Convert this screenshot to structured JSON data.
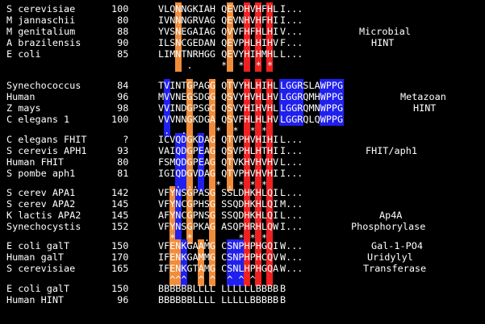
{
  "groups": [
    {
      "rows": [
        {
          "name": "S cerevisiae",
          "pos": "100",
          "seq": "VLQNNGKIAH QEVDHVHFHL",
          "tail": "I..."
        },
        {
          "name": "M jannaschii",
          "pos": "80",
          "seq": "IVNNNGRVAG QEVNHVHFHI",
          "tail": "I..."
        },
        {
          "name": "M genitalium",
          "pos": "88",
          "seq": "YVSNEGAIAG QVVFHFHLHI",
          "tail": "V..."
        },
        {
          "name": "A brazilensis",
          "pos": "90",
          "seq": "ILSNCGEDAN QEVPHLHIHV",
          "tail": "F..."
        },
        {
          "name": "E coli",
          "pos": "85",
          "seq": "LIMNTNRHGG QEVYHIHMHL",
          "tail": "L..."
        }
      ],
      "symbols": "     .     *  *  * *",
      "label": [
        "Microbial",
        "HINT"
      ]
    },
    {
      "rows": [
        {
          "name": "Synechococcus",
          "pos": "84",
          "seq": "TVINTGPAGG QTVYHLHIHL",
          "tail": "LGGRSLAWPPG"
        },
        {
          "name": "Human",
          "pos": "96",
          "seq": "MVVNEGSDGG QSVYHVHLHV",
          "tail": "LGGRQMHWPPG"
        },
        {
          "name": "Z mays",
          "pos": "98",
          "seq": "VVINDGPSGC QSVYHIHVHL",
          "tail": "LGGRQMNWPPG"
        },
        {
          "name": "C elegans 1",
          "pos": "100",
          "seq": "VVVNNGKDGA QSVFHLHLHV",
          "tail": "LGGRQLQWPPG"
        }
      ],
      "symbols": " .  .     *  *  * *",
      "label": [
        "Metazoan",
        "HINT"
      ]
    },
    {
      "rows": [
        {
          "name": "C elegans FHIT",
          "pos": "?",
          "seq": "ICVQDGKDAG QTVPHVHIHI",
          "tail": "L..."
        },
        {
          "name": "S cerevis APH1",
          "pos": "93",
          "seq": "VAIQDGPEAG QSVPHLHTHI",
          "tail": "I..."
        },
        {
          "name": "Human FHIT",
          "pos": "80",
          "seq": "FSMQDGPEAG QTVKHVHVHV",
          "tail": "L..."
        },
        {
          "name": "S pombe aph1",
          "pos": "81",
          "seq": "IGIQDGVDAG QTVPHVHVHI",
          "tail": "I..."
        }
      ],
      "symbols": "   . ..   * . * * *",
      "label": [
        "FHIT/aph1"
      ]
    },
    {
      "rows": [
        {
          "name": "S cerev APA1",
          "pos": "142",
          "seq": "VFYNSGPASG SSLDHKHLQI",
          "tail": "L..."
        },
        {
          "name": "S cerev APA2",
          "pos": "145",
          "seq": "VFYNCGPHSG SSQDHKHLQI",
          "tail": "M..."
        },
        {
          "name": "K lactis APA2",
          "pos": "145",
          "seq": "AFYNCGPNSG SSQDHKHLQI",
          "tail": "L..."
        },
        {
          "name": "Synechocystis",
          "pos": "152",
          "seq": "VFYNSGPKAG ASQPHRHLQW",
          "tail": "I..."
        }
      ],
      "symbols": "  *  *  .     * * *",
      "label": [
        "Ap4A",
        "Phosphorylase"
      ]
    },
    {
      "rows": [
        {
          "name": "E coli galT",
          "pos": "150",
          "seq": "VFENKGAAMG CSNPHPHGQI",
          "tail": "W..."
        },
        {
          "name": "Human galT",
          "pos": "170",
          "seq": "IFENKGAMMG CSNPHPHCQV",
          "tail": "W..."
        },
        {
          "name": "S cerevisiae",
          "pos": "165",
          "seq": "IFENKGTAMG CSNLHPHGQA",
          "tail": "W..."
        }
      ],
      "symbols": "  ^^^  ^ ^  ^ ^ ^",
      "label": [
        "Gal-1-PO4",
        "Uridylyl",
        "Transferase"
      ]
    },
    {
      "rows": [
        {
          "name": "E coli galT",
          "pos": "150",
          "seq": "BBBBBBLLLL LLLLLLBBBB",
          "tail": "B"
        },
        {
          "name": "Human HINT",
          "pos": "96",
          "seq": "BBBBBBLLLL LLLLLBBBBB",
          "tail": "B"
        }
      ],
      "symbols": "",
      "label": []
    }
  ],
  "colors": {
    "orange": "#f08c3a",
    "red": "#ee2020",
    "blue": "#2020ee"
  }
}
